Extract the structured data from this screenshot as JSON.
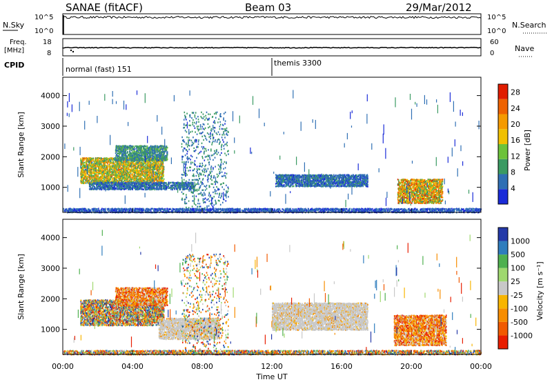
{
  "header": {
    "station": "SANAE (fitACF)",
    "beam": "Beam 03",
    "date": "29/Mar/2012"
  },
  "colors": {
    "power_scale": [
      "#1a2bd8",
      "#2f6fb4",
      "#3a9a62",
      "#6cc23a",
      "#f0c000",
      "#f59a00",
      "#ee6200",
      "#e01c00"
    ],
    "velocity_scale": [
      "#e81e00",
      "#f15a00",
      "#f78d00",
      "#f8b500",
      "#c8c8c8",
      "#9fd86f",
      "#4fb04f",
      "#2f7dbd",
      "#2439a8"
    ]
  },
  "chart_data": [
    {
      "type": "line",
      "name": "nsky-nsearch",
      "left_label": "N.Sky",
      "right_label": "N.Search",
      "left_ticks": [
        "10^5",
        "10^0"
      ],
      "right_ticks": [
        "10^5",
        "10^0"
      ],
      "x": [
        "00:00",
        "04:00",
        "08:00",
        "12:00",
        "16:00",
        "20:00",
        "00:00"
      ],
      "level_fraction": 0.78
    },
    {
      "type": "line",
      "name": "freq-nave",
      "left_label_line1": "Freq.",
      "left_label_line2": "[MHz]",
      "right_label": "Nave",
      "left_ticks": [
        "18",
        "8"
      ],
      "right_ticks": [
        "60",
        "0"
      ],
      "freq_level_mhz": 12.5
    },
    {
      "type": "table",
      "name": "cpid",
      "label": "CPID",
      "segments": [
        {
          "label": "normal (fast) 151",
          "start_hour": 0,
          "end_hour": 12
        },
        {
          "label": "themis 3300",
          "start_hour": 12,
          "end_hour": 24
        }
      ]
    },
    {
      "type": "heatmap",
      "name": "power",
      "ylabel": "Slant Range [km]",
      "yticks": [
        "1000",
        "2000",
        "3000",
        "4000"
      ],
      "ylim": [
        180,
        4600
      ],
      "colorbar_label": "Power [dB]",
      "colorbar_ticks": [
        "4",
        "8",
        "12",
        "16",
        "20",
        "24",
        "28"
      ],
      "colorbar_range": [
        0,
        30
      ],
      "regions": [
        {
          "h0": 1.0,
          "h1": 5.8,
          "r0": 1150,
          "r1": 2000,
          "peak": 22
        },
        {
          "h0": 3.0,
          "h1": 6.0,
          "r0": 1900,
          "r1": 2400,
          "peak": 12
        },
        {
          "h0": 1.5,
          "h1": 7.5,
          "r0": 950,
          "r1": 1200,
          "peak": 8
        },
        {
          "h0": 12.2,
          "h1": 17.5,
          "r0": 1050,
          "r1": 1450,
          "peak": 8
        },
        {
          "h0": 19.2,
          "h1": 21.8,
          "r0": 500,
          "r1": 1300,
          "peak": 26
        },
        {
          "h0": 6.8,
          "h1": 9.5,
          "r0": 300,
          "r1": 3500,
          "peak": 10
        },
        {
          "h0": 0.0,
          "h1": 24.0,
          "r0": 200,
          "r1": 350,
          "peak": 6
        }
      ]
    },
    {
      "type": "heatmap",
      "name": "velocity",
      "ylabel": "Slant Range [km]",
      "yticks": [
        "1000",
        "2000",
        "3000",
        "4000"
      ],
      "ylim": [
        180,
        4600
      ],
      "xlabel": "Time UT",
      "xticks": [
        "00:00",
        "04:00",
        "08:00",
        "12:00",
        "16:00",
        "20:00",
        "00:00"
      ],
      "colorbar_label": "Velocity  [m s⁻¹]",
      "colorbar_ticks": [
        "1000",
        "500",
        "100",
        "25",
        "-25",
        "-100",
        "-500",
        "-1000"
      ],
      "regions": [
        {
          "h0": 1.0,
          "h1": 5.8,
          "r0": 1150,
          "r1": 2000,
          "vel": "mixed"
        },
        {
          "h0": 3.0,
          "h1": 6.0,
          "r0": 1800,
          "r1": 2400,
          "vel": "negative"
        },
        {
          "h0": 5.5,
          "h1": 9.0,
          "r0": 700,
          "r1": 1400,
          "vel": "ground"
        },
        {
          "h0": 12.0,
          "h1": 17.5,
          "r0": 1000,
          "r1": 1900,
          "vel": "ground"
        },
        {
          "h0": 19.0,
          "h1": 22.0,
          "r0": 500,
          "r1": 1500,
          "vel": "negative"
        },
        {
          "h0": 6.8,
          "h1": 9.5,
          "r0": 300,
          "r1": 3500,
          "vel": "mixed"
        },
        {
          "h0": 0.0,
          "h1": 24.0,
          "r0": 200,
          "r1": 350,
          "vel": "mixed"
        }
      ]
    }
  ]
}
